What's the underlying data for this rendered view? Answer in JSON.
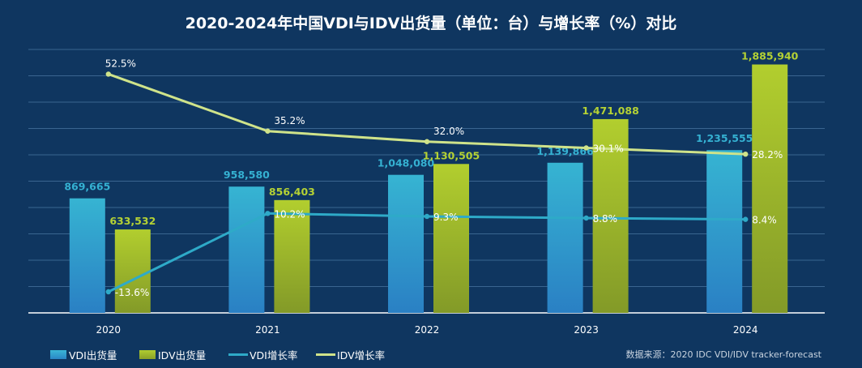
{
  "chart_data": {
    "type": "bar+line",
    "title": "2020-2024年中国VDI与IDV出货量（单位：台）与增长率（%）对比",
    "categories": [
      "2020",
      "2021",
      "2022",
      "2023",
      "2024"
    ],
    "bar_axis": {
      "ylim": [
        0,
        2000000
      ]
    },
    "line_axis": {
      "ylim": [
        -20,
        60
      ]
    },
    "grid": true,
    "legend_placement": "bottom-left",
    "series": [
      {
        "name": "VDI出货量",
        "type": "bar",
        "color": "#2fb0cf",
        "values": [
          869665,
          958580,
          1048080,
          1139866,
          1235555
        ],
        "labels": [
          "869,665",
          "958,580",
          "1,048,080",
          "1,139,866",
          "1,235,555"
        ]
      },
      {
        "name": "IDV出货量",
        "type": "bar",
        "color": "#a8c830",
        "values": [
          633532,
          856403,
          1130505,
          1471088,
          1885940
        ],
        "labels": [
          "633,532",
          "856,403",
          "1,130,505",
          "1,471,088",
          "1,885,940"
        ]
      },
      {
        "name": "VDI增长率",
        "type": "line",
        "color": "#2eaac8",
        "values": [
          -13.6,
          10.2,
          9.3,
          8.8,
          8.4
        ],
        "labels": [
          "-13.6%",
          "10.2%",
          "9.3%",
          "8.8%",
          "8.4%"
        ]
      },
      {
        "name": "IDV增长率",
        "type": "line",
        "color": "#cfe38a",
        "values": [
          52.5,
          35.2,
          32.0,
          30.1,
          28.2
        ],
        "labels": [
          "52.5%",
          "35.2%",
          "32.0%",
          "30.1%",
          "28.2%"
        ]
      }
    ],
    "source": "数据来源：2020 IDC VDI/IDV tracker-forecast"
  }
}
